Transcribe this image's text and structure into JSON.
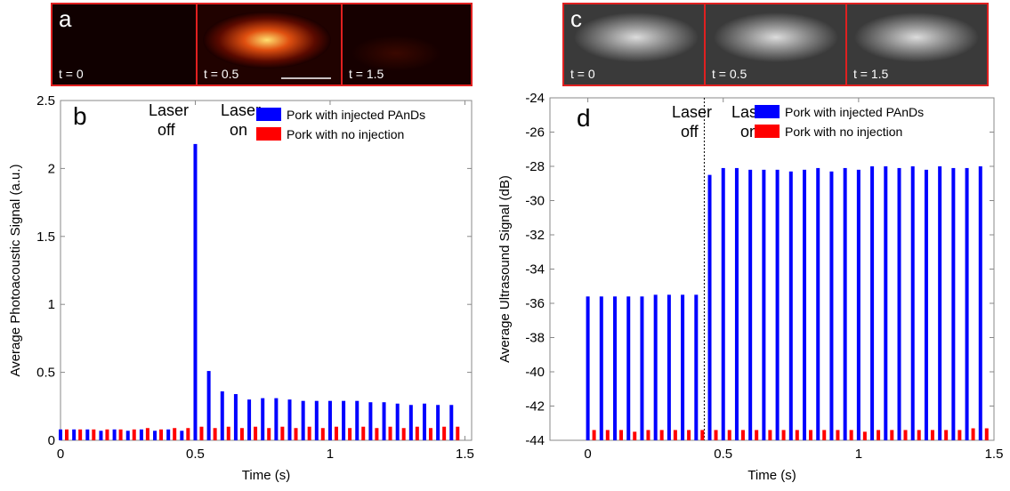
{
  "chart_data": [
    {
      "type": "bar",
      "panel_label": "b",
      "image_strip": {
        "label": "a",
        "frames": [
          "t = 0",
          "t = 0.5",
          "t = 1.5"
        ]
      },
      "xlabel": "Time (s)",
      "ylabel": "Average Photoacoustic Signal (a.u.)",
      "annotations": [
        [
          "Laser",
          "off"
        ],
        [
          "Laser",
          "on"
        ]
      ],
      "x": [
        0,
        0.05,
        0.1,
        0.15,
        0.2,
        0.25,
        0.3,
        0.35,
        0.4,
        0.45,
        0.5,
        0.55,
        0.6,
        0.65,
        0.7,
        0.75,
        0.8,
        0.85,
        0.9,
        0.95,
        1,
        1.05,
        1.1,
        1.15,
        1.2,
        1.25,
        1.3,
        1.35,
        1.4,
        1.45
      ],
      "series": [
        {
          "name": "Pork with injected PAnDs",
          "color": "#0000ff",
          "values": [
            0.08,
            0.08,
            0.08,
            0.07,
            0.08,
            0.07,
            0.08,
            0.07,
            0.08,
            0.07,
            2.18,
            0.51,
            0.36,
            0.34,
            0.3,
            0.31,
            0.31,
            0.3,
            0.29,
            0.29,
            0.29,
            0.29,
            0.29,
            0.28,
            0.28,
            0.27,
            0.26,
            0.27,
            0.26,
            0.26
          ]
        },
        {
          "name": "Pork with no injection",
          "color": "#ff0000",
          "values": [
            0.08,
            0.08,
            0.08,
            0.08,
            0.08,
            0.08,
            0.09,
            0.08,
            0.09,
            0.09,
            0.1,
            0.09,
            0.1,
            0.09,
            0.1,
            0.09,
            0.1,
            0.09,
            0.1,
            0.09,
            0.1,
            0.09,
            0.1,
            0.09,
            0.1,
            0.09,
            0.1,
            0.09,
            0.1,
            0.1
          ]
        }
      ],
      "xlim": [
        0,
        1.525
      ],
      "xticks": [
        0,
        0.5,
        1,
        1.5
      ],
      "ylim": [
        0,
        2.5
      ],
      "yticks": [
        0,
        0.5,
        1,
        1.5,
        2,
        2.5
      ],
      "legend": "upper right"
    },
    {
      "type": "bar",
      "panel_label": "d",
      "image_strip": {
        "label": "c",
        "frames": [
          "t = 0",
          "t = 0.5",
          "t = 1.5"
        ]
      },
      "xlabel": "Time (s)",
      "ylabel": "Average Ultrasound Signal (dB)",
      "annotations": [
        [
          "Laser",
          "off"
        ],
        [
          "Laser",
          "on"
        ]
      ],
      "laser_on_line": 0.43,
      "x": [
        0,
        0.05,
        0.1,
        0.15,
        0.2,
        0.25,
        0.3,
        0.35,
        0.4,
        0.45,
        0.5,
        0.55,
        0.6,
        0.65,
        0.7,
        0.75,
        0.8,
        0.85,
        0.9,
        0.95,
        1,
        1.05,
        1.1,
        1.15,
        1.2,
        1.25,
        1.3,
        1.35,
        1.4,
        1.45
      ],
      "series": [
        {
          "name": "Pork with injected PAnDs",
          "color": "#0000ff",
          "values": [
            -35.6,
            -35.6,
            -35.6,
            -35.6,
            -35.6,
            -35.5,
            -35.5,
            -35.5,
            -35.5,
            -28.5,
            -28.1,
            -28.1,
            -28.2,
            -28.2,
            -28.2,
            -28.3,
            -28.2,
            -28.1,
            -28.3,
            -28.1,
            -28.2,
            -28.0,
            -28.0,
            -28.1,
            -28.0,
            -28.2,
            -28.0,
            -28.1,
            -28.1,
            -28.0
          ]
        },
        {
          "name": "Pork with no injection",
          "color": "#ff0000",
          "values": [
            -43.4,
            -43.4,
            -43.4,
            -43.5,
            -43.4,
            -43.4,
            -43.4,
            -43.4,
            -43.4,
            -43.4,
            -43.4,
            -43.4,
            -43.4,
            -43.4,
            -43.4,
            -43.4,
            -43.4,
            -43.4,
            -43.4,
            -43.4,
            -43.5,
            -43.4,
            -43.4,
            -43.4,
            -43.4,
            -43.4,
            -43.4,
            -43.4,
            -43.3,
            -43.3
          ]
        }
      ],
      "xlim": [
        -0.14,
        1.5
      ],
      "xticks": [
        0,
        0.5,
        1,
        1.5
      ],
      "ylim": [
        -44,
        -24
      ],
      "yticks": [
        -44,
        -42,
        -40,
        -38,
        -36,
        -34,
        -32,
        -30,
        -28,
        -26,
        -24
      ],
      "legend": "upper right"
    }
  ]
}
